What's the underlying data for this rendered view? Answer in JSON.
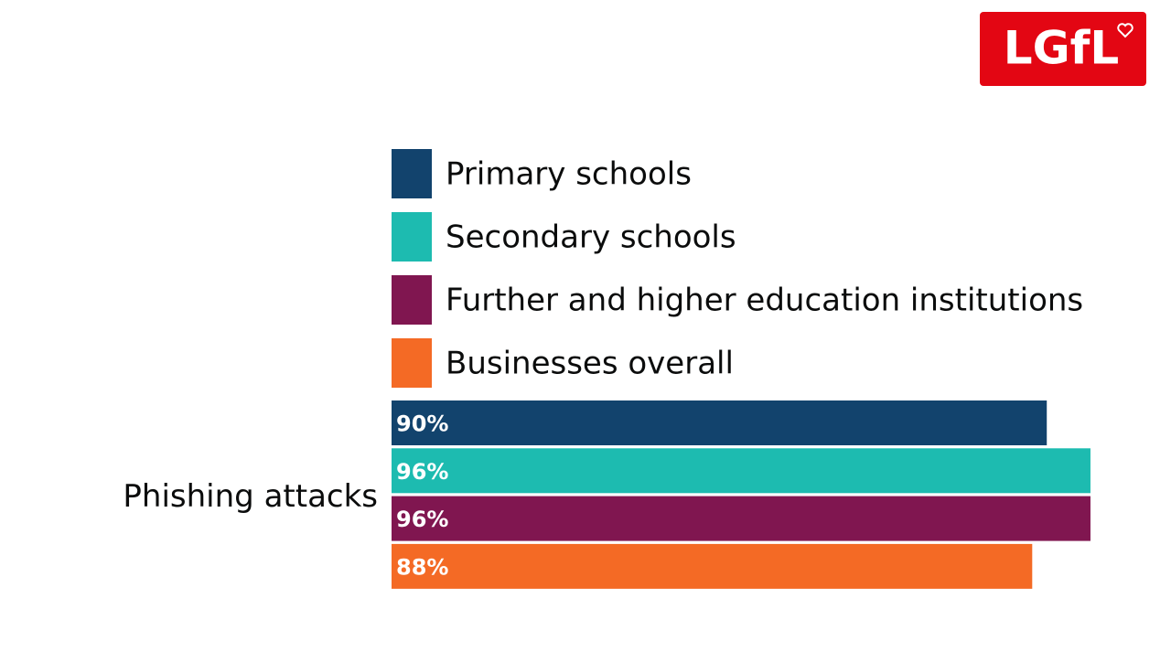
{
  "logo": {
    "text": "LGfL"
  },
  "chart_data": {
    "type": "bar",
    "orientation": "horizontal",
    "categories": [
      "Phishing attacks"
    ],
    "series": [
      {
        "name": "Primary schools",
        "color": "#12436d",
        "values": [
          90
        ],
        "value_labels": [
          "90%"
        ]
      },
      {
        "name": "Secondary schools",
        "color": "#1dbbb0",
        "values": [
          96
        ],
        "value_labels": [
          "96%"
        ]
      },
      {
        "name": "Further and higher education institutions",
        "color": "#801650",
        "values": [
          96
        ],
        "value_labels": [
          "96%"
        ]
      },
      {
        "name": "Businesses overall",
        "color": "#f46a25",
        "values": [
          88
        ],
        "value_labels": [
          "88%"
        ]
      }
    ]
  }
}
